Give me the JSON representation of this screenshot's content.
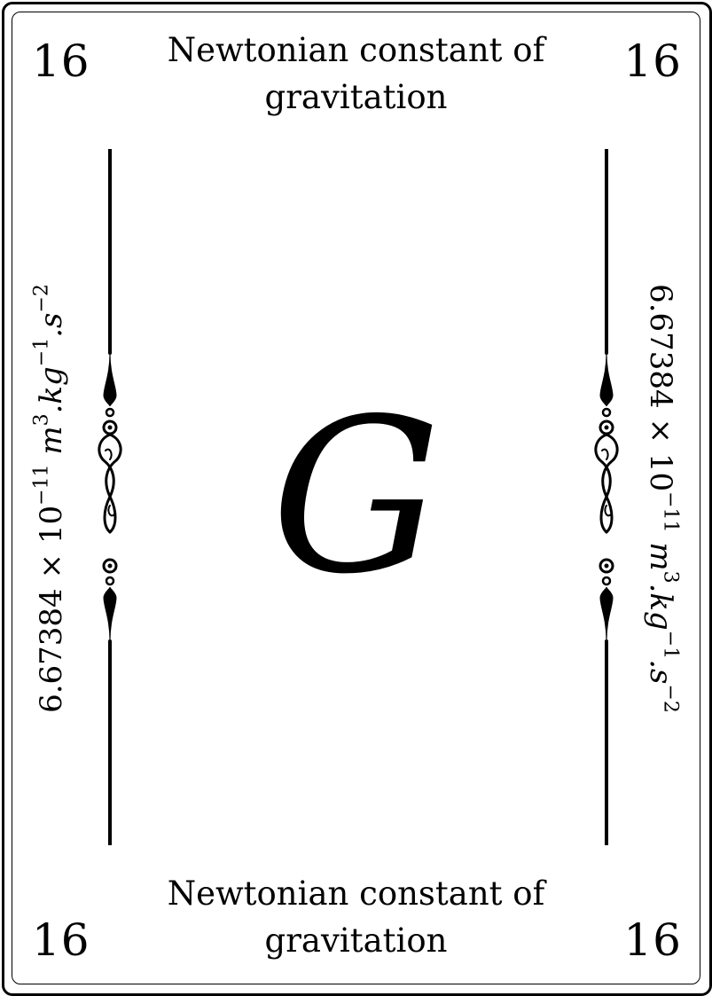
{
  "card": {
    "number": "16",
    "title": "Newtonian constant of gravitation",
    "symbol": "G",
    "value": {
      "mantissa": "6.67384",
      "times": "×",
      "base": "10",
      "exponent": "−11",
      "unit_m": "m",
      "unit_m_exp": "3",
      "unit_kg": ".kg",
      "unit_kg_exp": "−1",
      "unit_s": ".s",
      "unit_s_exp": "−2"
    }
  }
}
